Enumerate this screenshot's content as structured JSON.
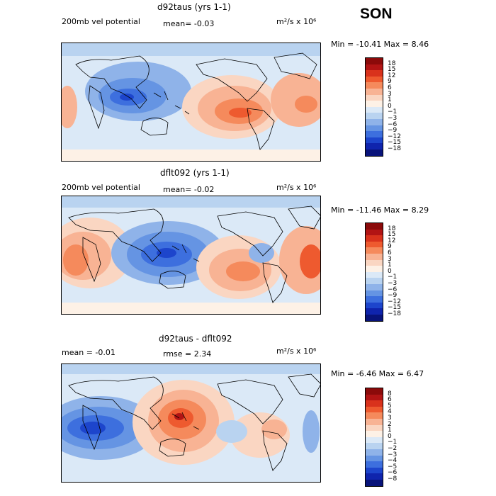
{
  "season": "SON",
  "panels": [
    {
      "title": "d92taus (yrs 1-1)",
      "field": "200mb vel potential",
      "stat": "mean=  -0.03",
      "units": "m²/s x 10⁶",
      "minmax": "Min = -10.41 Max =   8.46",
      "colorbar": {
        "labels": [
          "18",
          "15",
          "12",
          "9",
          "6",
          "3",
          "1",
          "0",
          "-1",
          "-3",
          "-6",
          "-9",
          "-12",
          "-15",
          "-18"
        ],
        "colors": [
          "#8b0a0a",
          "#b21414",
          "#d9321c",
          "#ee5a2f",
          "#f58a5c",
          "#f8b394",
          "#fad6c2",
          "#fdf1e6",
          "#dbe9f7",
          "#b9d3f0",
          "#8fb3e9",
          "#6594e3",
          "#3d6fde",
          "#1d45cc",
          "#0f24ad",
          "#08137a"
        ]
      }
    },
    {
      "title": "dflt092 (yrs 1-1)",
      "field": "200mb vel potential",
      "stat": "mean=  -0.02",
      "units": "m²/s x 10⁶",
      "minmax": "Min = -11.46 Max =   8.29",
      "colorbar": {
        "labels": [
          "18",
          "15",
          "12",
          "9",
          "6",
          "3",
          "1",
          "0",
          "-1",
          "-3",
          "-6",
          "-9",
          "-12",
          "-15",
          "-18"
        ],
        "colors": [
          "#8b0a0a",
          "#b21414",
          "#d9321c",
          "#ee5a2f",
          "#f58a5c",
          "#f8b394",
          "#fad6c2",
          "#fdf1e6",
          "#dbe9f7",
          "#b9d3f0",
          "#8fb3e9",
          "#6594e3",
          "#3d6fde",
          "#1d45cc",
          "#0f24ad",
          "#08137a"
        ]
      }
    },
    {
      "title": "d92taus - dflt092",
      "stat": "mean =   -0.01",
      "rmse": "rmse =    2.34",
      "units": "m²/s x 10⁶",
      "minmax": "Min = -6.46 Max =   6.47",
      "colorbar": {
        "labels": [
          "8",
          "6",
          "5",
          "4",
          "3",
          "2",
          "1",
          "0",
          "-1",
          "-2",
          "-3",
          "-4",
          "-5",
          "-6",
          "-8"
        ],
        "colors": [
          "#8b0a0a",
          "#b21414",
          "#d9321c",
          "#ee5a2f",
          "#f58a5c",
          "#f8b394",
          "#fad6c2",
          "#fdf1e6",
          "#dbe9f7",
          "#b9d3f0",
          "#8fb3e9",
          "#6594e3",
          "#3d6fde",
          "#1d45cc",
          "#0f24ad",
          "#08137a"
        ]
      }
    }
  ]
}
